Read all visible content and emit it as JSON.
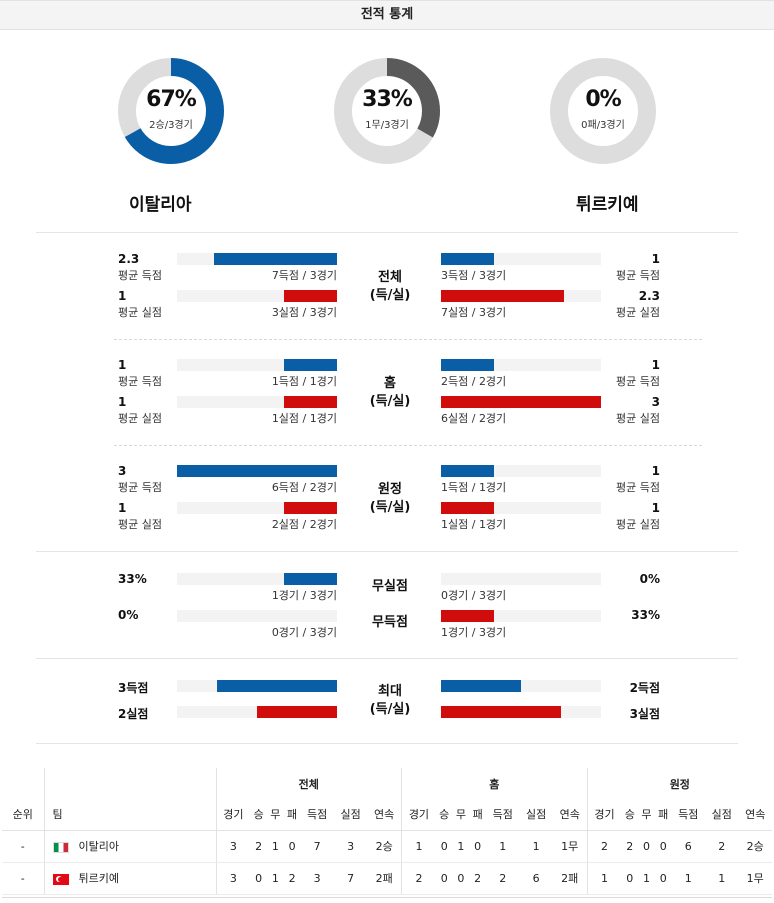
{
  "header": {
    "title": "전적 통계"
  },
  "donuts": [
    {
      "percent": "67%",
      "sub": "2승/3경기",
      "fraction": 0.667,
      "color": "#0a5ea6"
    },
    {
      "percent": "33%",
      "sub": "1무/3경기",
      "fraction": 0.333,
      "color": "#5a5a5a"
    },
    {
      "percent": "0%",
      "sub": "0패/3경기",
      "fraction": 0.0,
      "color": "#0a5ea6"
    }
  ],
  "teams": {
    "home": "이탈리아",
    "away": "튀르키예"
  },
  "colors": {
    "blue": "#0a5ea6",
    "red": "#d10c0c",
    "track": "#f3f3f3",
    "donut_bg": "#dddddd"
  },
  "sections": {
    "total": {
      "cat1": "전체",
      "cat2": "(득/실)",
      "l1": {
        "val": "2.3",
        "lbl": "평균 득점",
        "cnt": "7득점 / 3경기",
        "fill": 0.77
      },
      "l2": {
        "val": "1",
        "lbl": "평균 실점",
        "cnt": "3실점 / 3경기",
        "fill": 0.33
      },
      "r1": {
        "val": "1",
        "lbl": "평균 득점",
        "cnt": "3득점 / 3경기",
        "fill": 0.33
      },
      "r2": {
        "val": "2.3",
        "lbl": "평균 실점",
        "cnt": "7실점 / 3경기",
        "fill": 0.77
      }
    },
    "home": {
      "cat1": "홈",
      "cat2": "(득/실)",
      "l1": {
        "val": "1",
        "lbl": "평균 득점",
        "cnt": "1득점 / 1경기",
        "fill": 0.33
      },
      "l2": {
        "val": "1",
        "lbl": "평균 실점",
        "cnt": "1실점 / 1경기",
        "fill": 0.33
      },
      "r1": {
        "val": "1",
        "lbl": "평균 득점",
        "cnt": "2득점 / 2경기",
        "fill": 0.33
      },
      "r2": {
        "val": "3",
        "lbl": "평균 실점",
        "cnt": "6실점 / 2경기",
        "fill": 1.0
      }
    },
    "away": {
      "cat1": "원정",
      "cat2": "(득/실)",
      "l1": {
        "val": "3",
        "lbl": "평균 득점",
        "cnt": "6득점 / 2경기",
        "fill": 1.0
      },
      "l2": {
        "val": "1",
        "lbl": "평균 실점",
        "cnt": "2실점 / 2경기",
        "fill": 0.33
      },
      "r1": {
        "val": "1",
        "lbl": "평균 득점",
        "cnt": "1득점 / 1경기",
        "fill": 0.33
      },
      "r2": {
        "val": "1",
        "lbl": "평균 실점",
        "cnt": "1실점 / 1경기",
        "fill": 0.33
      }
    },
    "clean": {
      "cat_a": "무실점",
      "cat_b": "무득점",
      "l1": {
        "val": "33%",
        "cnt": "1경기 / 3경기",
        "fill": 0.33
      },
      "l2": {
        "val": "0%",
        "cnt": "0경기 / 3경기",
        "fill": 0.0
      },
      "r1": {
        "val": "0%",
        "cnt": "0경기 / 3경기",
        "fill": 0.0
      },
      "r2": {
        "val": "33%",
        "cnt": "1경기 / 3경기",
        "fill": 0.33
      }
    },
    "max": {
      "cat1": "최대",
      "cat2": "(득/실)",
      "l1": {
        "val": "3득점",
        "fill": 0.75
      },
      "l2": {
        "val": "2실점",
        "fill": 0.5
      },
      "r1": {
        "val": "2득점",
        "fill": 0.5
      },
      "r2": {
        "val": "3실점",
        "fill": 0.75
      }
    }
  },
  "standings": {
    "groups": [
      "전체",
      "홈",
      "원정"
    ],
    "rank_header": "순위",
    "team_header": "팀",
    "cols": [
      "경기",
      "승",
      "무",
      "패",
      "득점",
      "실점",
      "연속"
    ],
    "rows": [
      {
        "rank": "-",
        "team": "이탈리아",
        "flag": "it",
        "total": [
          "3",
          "2",
          "1",
          "0",
          "7",
          "3",
          "2승"
        ],
        "home": [
          "1",
          "0",
          "1",
          "0",
          "1",
          "1",
          "1무"
        ],
        "away": [
          "2",
          "2",
          "0",
          "0",
          "6",
          "2",
          "2승"
        ]
      },
      {
        "rank": "-",
        "team": "튀르키예",
        "flag": "tr",
        "total": [
          "3",
          "0",
          "1",
          "2",
          "3",
          "7",
          "2패"
        ],
        "home": [
          "2",
          "0",
          "0",
          "2",
          "2",
          "6",
          "2패"
        ],
        "away": [
          "1",
          "0",
          "1",
          "0",
          "1",
          "1",
          "1무"
        ]
      }
    ]
  }
}
